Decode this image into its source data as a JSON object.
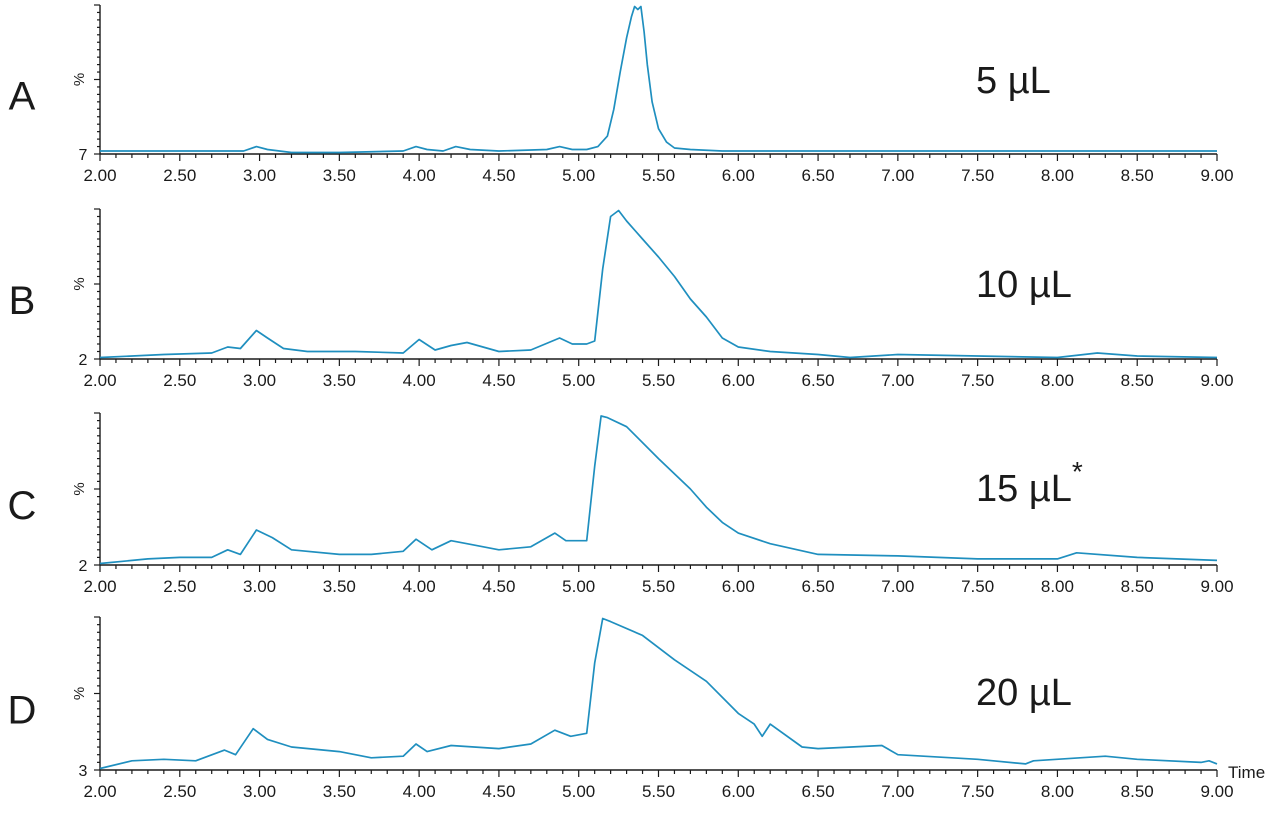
{
  "chart_data": [
    {
      "type": "line",
      "panel_label": "A",
      "annotation": "5 µL",
      "annotation_superscript": "",
      "ylabel": "%",
      "y_baseline_label": "7",
      "x_tick_labels": [
        "2.00",
        "2.50",
        "3.00",
        "3.50",
        "4.00",
        "4.50",
        "5.00",
        "5.50",
        "6.00",
        "6.50",
        "7.00",
        "7.50",
        "8.00",
        "8.50",
        "9.00"
      ],
      "xlim": [
        2.0,
        9.0
      ],
      "ylim": [
        0,
        100
      ],
      "series": [
        {
          "color": "#1f8fbf",
          "x": [
            2.0,
            2.5,
            2.9,
            2.98,
            3.05,
            3.2,
            3.5,
            3.9,
            3.98,
            4.05,
            4.15,
            4.23,
            4.32,
            4.5,
            4.8,
            4.88,
            4.96,
            5.05,
            5.12,
            5.18,
            5.22,
            5.26,
            5.3,
            5.33,
            5.35,
            5.37,
            5.39,
            5.41,
            5.43,
            5.46,
            5.5,
            5.55,
            5.6,
            5.7,
            5.9,
            6.2,
            6.5,
            7.0,
            7.5,
            8.0,
            8.5,
            9.0
          ],
          "y": [
            2,
            2,
            2,
            5,
            3,
            1,
            1,
            2,
            5,
            3,
            2,
            5,
            3,
            2,
            3,
            5,
            3,
            3,
            5,
            12,
            30,
            55,
            78,
            92,
            99,
            97,
            99,
            82,
            60,
            35,
            17,
            8,
            4,
            3,
            2,
            2,
            2,
            2,
            2,
            2,
            2,
            2
          ]
        }
      ]
    },
    {
      "type": "line",
      "panel_label": "B",
      "annotation": "10 µL",
      "annotation_superscript": "",
      "ylabel": "%",
      "y_baseline_label": "2",
      "x_tick_labels": [
        "2.00",
        "2.50",
        "3.00",
        "3.50",
        "4.00",
        "4.50",
        "5.00",
        "5.50",
        "6.00",
        "6.50",
        "7.00",
        "7.50",
        "8.00",
        "8.50",
        "9.00"
      ],
      "xlim": [
        2.0,
        9.0
      ],
      "ylim": [
        0,
        100
      ],
      "series": [
        {
          "color": "#1f8fbf",
          "x": [
            2.0,
            2.4,
            2.7,
            2.8,
            2.88,
            2.98,
            3.05,
            3.15,
            3.3,
            3.6,
            3.9,
            4.0,
            4.1,
            4.2,
            4.3,
            4.5,
            4.7,
            4.88,
            4.96,
            5.05,
            5.1,
            5.15,
            5.2,
            5.25,
            5.3,
            5.4,
            5.5,
            5.6,
            5.7,
            5.8,
            5.9,
            6.0,
            6.2,
            6.5,
            6.7,
            7.0,
            7.5,
            8.0,
            8.25,
            8.5,
            9.0
          ],
          "y": [
            1,
            3,
            4,
            8,
            7,
            19,
            14,
            7,
            5,
            5,
            4,
            13,
            6,
            9,
            11,
            5,
            6,
            14,
            10,
            10,
            12,
            60,
            95,
            99,
            92,
            80,
            68,
            55,
            40,
            28,
            14,
            8,
            5,
            3,
            1,
            3,
            2,
            1,
            4,
            2,
            1
          ]
        }
      ]
    },
    {
      "type": "line",
      "panel_label": "C",
      "annotation": "15 µL",
      "annotation_superscript": "*",
      "ylabel": "%",
      "y_baseline_label": "2",
      "x_tick_labels": [
        "2.00",
        "2.50",
        "3.00",
        "3.50",
        "4.00",
        "4.50",
        "5.00",
        "5.50",
        "6.00",
        "6.50",
        "7.00",
        "7.50",
        "8.00",
        "8.50",
        "9.00"
      ],
      "xlim": [
        2.0,
        9.0
      ],
      "ylim": [
        0,
        100
      ],
      "series": [
        {
          "color": "#1f8fbf",
          "x": [
            2.0,
            2.3,
            2.5,
            2.7,
            2.8,
            2.88,
            2.98,
            3.08,
            3.2,
            3.5,
            3.7,
            3.9,
            3.98,
            4.08,
            4.2,
            4.3,
            4.5,
            4.7,
            4.85,
            4.92,
            5.05,
            5.1,
            5.14,
            5.18,
            5.3,
            5.5,
            5.7,
            5.8,
            5.9,
            6.0,
            6.2,
            6.5,
            7.0,
            7.5,
            8.0,
            8.12,
            8.5,
            9.0
          ],
          "y": [
            1,
            4,
            5,
            5,
            10,
            7,
            23,
            18,
            10,
            7,
            7,
            9,
            17,
            10,
            16,
            14,
            10,
            12,
            21,
            16,
            16,
            65,
            98,
            97,
            91,
            70,
            50,
            38,
            28,
            21,
            14,
            7,
            6,
            4,
            4,
            8,
            5,
            3
          ]
        }
      ]
    },
    {
      "type": "line",
      "panel_label": "D",
      "annotation": "20 µL",
      "annotation_superscript": "",
      "ylabel": "%",
      "y_baseline_label": "3",
      "x_tick_labels": [
        "2.00",
        "2.50",
        "3.00",
        "3.50",
        "4.00",
        "4.50",
        "5.00",
        "5.50",
        "6.00",
        "6.50",
        "7.00",
        "7.50",
        "8.00",
        "8.50",
        "9.00"
      ],
      "xlim": [
        2.0,
        9.0
      ],
      "ylim": [
        0,
        100
      ],
      "series": [
        {
          "color": "#1f8fbf",
          "x": [
            2.0,
            2.2,
            2.4,
            2.6,
            2.78,
            2.85,
            2.96,
            3.05,
            3.2,
            3.5,
            3.7,
            3.9,
            3.98,
            4.05,
            4.2,
            4.5,
            4.7,
            4.85,
            4.95,
            5.05,
            5.1,
            5.15,
            5.2,
            5.4,
            5.6,
            5.8,
            6.0,
            6.1,
            6.15,
            6.2,
            6.4,
            6.5,
            6.9,
            7.0,
            7.5,
            7.8,
            7.85,
            8.3,
            8.5,
            8.9,
            8.95,
            9.0
          ],
          "y": [
            1,
            6,
            7,
            6,
            13,
            10,
            27,
            20,
            15,
            12,
            8,
            9,
            17,
            12,
            16,
            14,
            17,
            26,
            22,
            24,
            70,
            99,
            97,
            88,
            72,
            58,
            37,
            30,
            22,
            30,
            15,
            14,
            16,
            10,
            7,
            4,
            6,
            9,
            7,
            5,
            6,
            4
          ]
        }
      ]
    }
  ],
  "x_axis_title": "Time"
}
